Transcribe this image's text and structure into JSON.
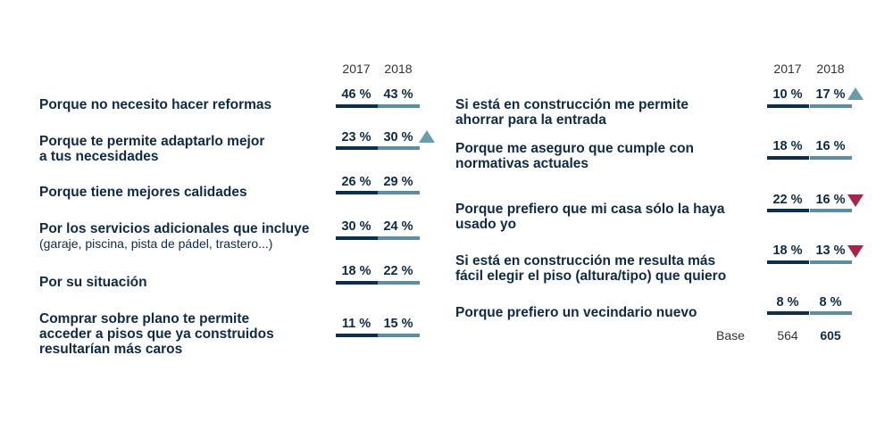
{
  "chart_data": [
    {
      "type": "table",
      "years": [
        "2017",
        "2018"
      ],
      "rows": [
        {
          "label": "Porque no necesito hacer reformas",
          "sublabel": "",
          "v2017": "46 %",
          "v2018": "43 %",
          "trend": ""
        },
        {
          "label": "Porque te permite adaptarlo mejor\na tus necesidades",
          "sublabel": "",
          "v2017": "23 %",
          "v2018": "30 %",
          "trend": "up"
        },
        {
          "label": "Porque tiene mejores calidades",
          "sublabel": "",
          "v2017": "26 %",
          "v2018": "29 %",
          "trend": ""
        },
        {
          "label": "Por los servicios adicionales que incluye",
          "sublabel": "(garaje, piscina, pista de pádel, trastero...)",
          "v2017": "30 %",
          "v2018": "24 %",
          "trend": ""
        },
        {
          "label": "Por su situación",
          "sublabel": "",
          "v2017": "18 %",
          "v2018": "22 %",
          "trend": ""
        },
        {
          "label": "Comprar sobre plano te permite\nacceder a pisos que ya construidos\nresultarían más caros",
          "sublabel": "",
          "v2017": "11 %",
          "v2018": "15 %",
          "trend": ""
        }
      ]
    },
    {
      "type": "table",
      "years": [
        "2017",
        "2018"
      ],
      "rows": [
        {
          "label": "Si está en construcción me permite\nahorrar para la entrada",
          "sublabel": "",
          "v2017": "10 %",
          "v2018": "17 %",
          "trend": "up"
        },
        {
          "label": "Porque me aseguro que cumple con\nnormativas actuales",
          "sublabel": "",
          "v2017": "18 %",
          "v2018": "16 %",
          "trend": ""
        },
        {
          "label": "Porque prefiero que mi casa sólo la haya\nusado yo",
          "sublabel": "",
          "v2017": "22 %",
          "v2018": "16 %",
          "trend": "down"
        },
        {
          "label": "Si está en construcción me resulta más\nfácil elegir el piso (altura/tipo) que quiero",
          "sublabel": "",
          "v2017": "18 %",
          "v2018": "13 %",
          "trend": "down"
        },
        {
          "label": "Porque prefiero un vecindario nuevo",
          "sublabel": "",
          "v2017": "8 %",
          "v2018": "8 %",
          "trend": ""
        }
      ],
      "base": {
        "label": "Base",
        "v2017": "564",
        "v2018": "605"
      }
    }
  ],
  "colors": {
    "bar_2017": "#0d2f4f",
    "bar_2018": "#5b8ea2",
    "trend_up": "#6a9cae",
    "trend_down": "#a8244a"
  }
}
